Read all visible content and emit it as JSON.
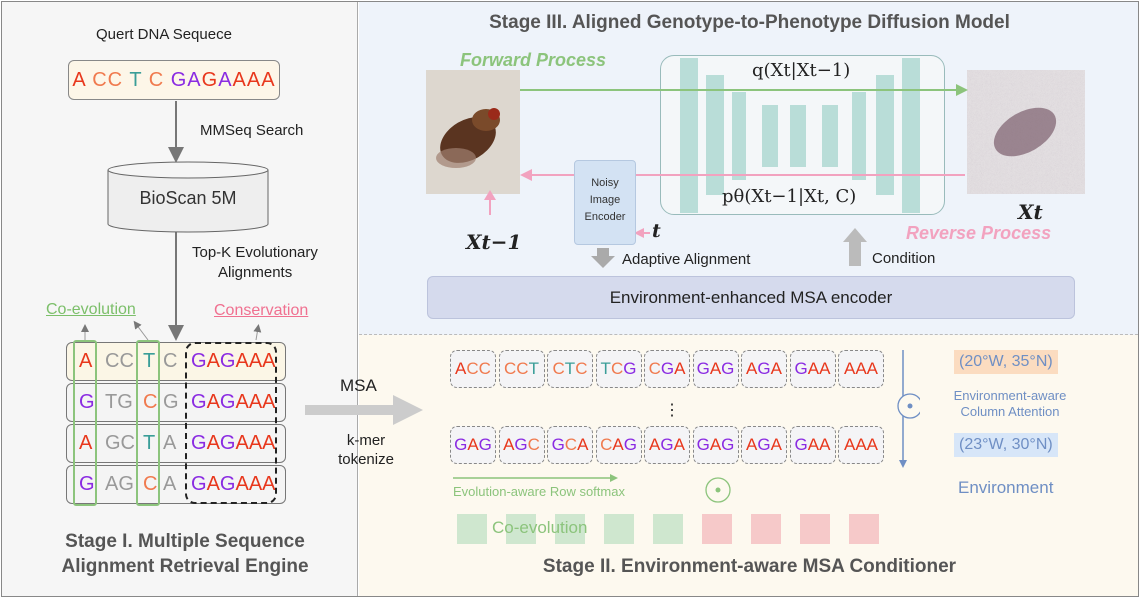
{
  "stage1": {
    "query_label": "Quert DNA Sequece",
    "query_seq": [
      [
        "A",
        "A"
      ],
      [
        " CC",
        "C"
      ],
      [
        " T",
        "T"
      ],
      [
        " C",
        "C"
      ],
      [
        " GA",
        "G"
      ],
      [
        "G",
        "A"
      ],
      [
        "A",
        "G"
      ],
      [
        "AAA",
        "A"
      ]
    ],
    "search_label": "MMSeq Search",
    "database": "BioScan 5M",
    "topk_label_1": "Top-K Evolutionary",
    "topk_label_2": "Alignments",
    "coevolution_label": "Co-evolution",
    "conservation_label": "Conservation",
    "msa_rows": [
      {
        "a": [
          "A",
          "A"
        ],
        "b": "CC",
        "c": [
          "T",
          "T"
        ],
        "d": "C"
      },
      {
        "a": [
          "G",
          "G"
        ],
        "b": "TG",
        "c": [
          "C",
          "C"
        ],
        "d": "G"
      },
      {
        "a": [
          "A",
          "A"
        ],
        "b": "GC",
        "c": [
          "T",
          "T"
        ],
        "d": "A"
      },
      {
        "a": [
          "G",
          "G"
        ],
        "b": "AG",
        "c": [
          "C",
          "C"
        ],
        "d": "A"
      }
    ],
    "conserved": "GAGAAA",
    "title_1": "Stage I. Multiple Sequence",
    "title_2": "Alignment Retrieval Engine"
  },
  "transfer": {
    "msa_label": "MSA",
    "tokenize_1": "k-mer",
    "tokenize_2": "tokenize"
  },
  "stage2": {
    "kmers_top": [
      "ACC",
      "CCT",
      "CTC",
      "TCG",
      "CGA",
      "GAG",
      "AGA",
      "GAA",
      "AAA"
    ],
    "kmers_bottom": [
      "GAG",
      "AGC",
      "GCA",
      "CAG",
      "AGA",
      "GAG",
      "AGA",
      "GAA",
      "AAA"
    ],
    "ellipsis": "⋮",
    "row_softmax": "Evolution-aware Row softmax",
    "coevolution": "Co-evolution",
    "env1": "(20°W, 35°N)",
    "env2": "(23°W, 30°N)",
    "col_attn_1": "Environment-aware",
    "col_attn_2": "Column Attention",
    "environment": "Environment",
    "title": "Stage II. Environment-aware MSA Conditioner",
    "square_colors": [
      "#cfe7cf",
      "#cfe7cf",
      "#cfe7cf",
      "#cfe7cf",
      "#cfe7cf",
      "#f6c9c9",
      "#f6c9c9",
      "#f6c9c9",
      "#f6c9c9"
    ]
  },
  "stage3": {
    "title": "Stage III. Aligned Genotype-to-Phenotype Diffusion Model",
    "forward": "Forward Process",
    "reverse": "Reverse Process",
    "q": "q(Xt|Xt−1)",
    "p": "pθ(Xt−1|Xt, C)",
    "encoder_1": "Noisy",
    "encoder_2": "Image",
    "encoder_3": "Encoder",
    "x_prev": "Xt−1",
    "x_t": "Xt",
    "t": "t",
    "adaptive": "Adaptive Alignment",
    "condition": "Condition",
    "msa_encoder": "Environment-enhanced MSA encoder"
  },
  "colors": {
    "A": "#e8371c",
    "C": "#f07a4e",
    "T": "#3a9e98",
    "G": "#8a2be2",
    "forward": "#8cc47c",
    "reverse": "#f2a2bf"
  }
}
